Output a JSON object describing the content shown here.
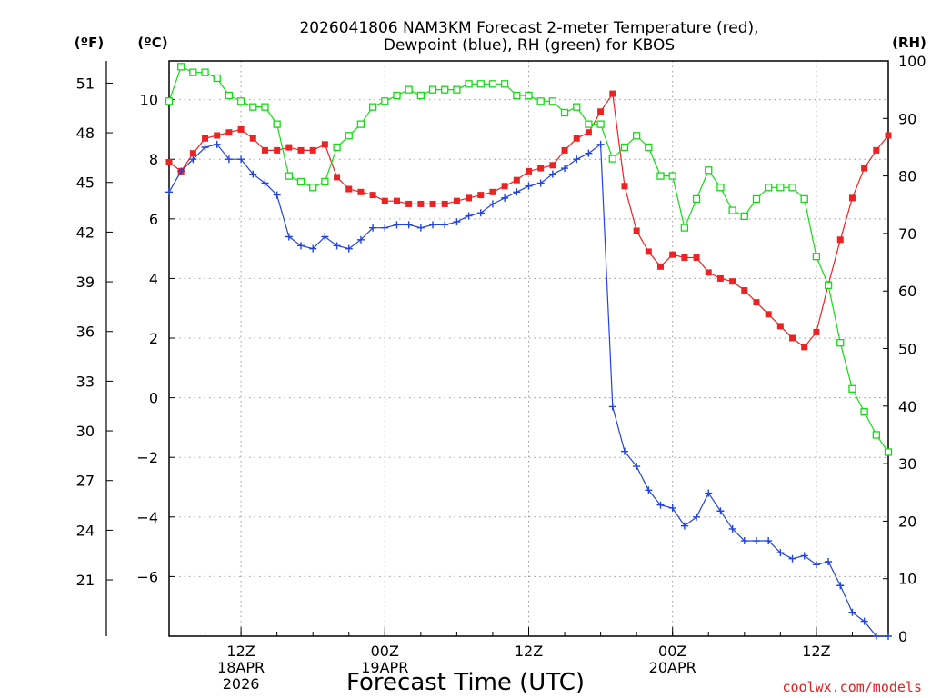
{
  "chart_data": {
    "type": "line",
    "title_line1": "2026041806 NAM3KM Forecast 2-meter Temperature (red),",
    "title_line2": "Dewpoint (blue), RH (green) for KBOS",
    "xlabel": "Forecast Time (UTC)",
    "credit": "coolwx.com/models",
    "left_outer_unit": "(ºF)",
    "left_inner_unit": "(ºC)",
    "right_unit": "(RH)",
    "x_hours": [
      0,
      1,
      2,
      3,
      4,
      5,
      6,
      7,
      8,
      9,
      10,
      11,
      12,
      13,
      14,
      15,
      16,
      17,
      18,
      19,
      20,
      21,
      22,
      23,
      24,
      25,
      26,
      27,
      28,
      29,
      30,
      31,
      32,
      33,
      34,
      35,
      36,
      37,
      38,
      39,
      40,
      41,
      42,
      43,
      44,
      45,
      46,
      47,
      48,
      49,
      50,
      51,
      52,
      53,
      54,
      55,
      56,
      57,
      58,
      59,
      60
    ],
    "x_range_hours": [
      0,
      60
    ],
    "celsius_range": [
      -8,
      11.3
    ],
    "rh_range": [
      0,
      100
    ],
    "fahrenheit_ticks": [
      {
        "value": 21,
        "label": "21"
      },
      {
        "value": 24,
        "label": "24"
      },
      {
        "value": 27,
        "label": "27"
      },
      {
        "value": 30,
        "label": "30"
      },
      {
        "value": 33,
        "label": "33"
      },
      {
        "value": 36,
        "label": "36"
      },
      {
        "value": 39,
        "label": "39"
      },
      {
        "value": 42,
        "label": "42"
      },
      {
        "value": 45,
        "label": "45"
      },
      {
        "value": 48,
        "label": "48"
      },
      {
        "value": 51,
        "label": "51"
      }
    ],
    "celsius_ticks": [
      {
        "value": -6,
        "label": "−6"
      },
      {
        "value": -4,
        "label": "−4"
      },
      {
        "value": -2,
        "label": "−2"
      },
      {
        "value": 0,
        "label": "0"
      },
      {
        "value": 2,
        "label": "2"
      },
      {
        "value": 4,
        "label": "4"
      },
      {
        "value": 6,
        "label": "6"
      },
      {
        "value": 8,
        "label": "8"
      },
      {
        "value": 10,
        "label": "10"
      }
    ],
    "rh_ticks": [
      {
        "value": 0,
        "label": "0"
      },
      {
        "value": 10,
        "label": "10"
      },
      {
        "value": 20,
        "label": "20"
      },
      {
        "value": 30,
        "label": "30"
      },
      {
        "value": 40,
        "label": "40"
      },
      {
        "value": 50,
        "label": "50"
      },
      {
        "value": 60,
        "label": "60"
      },
      {
        "value": 70,
        "label": "70"
      },
      {
        "value": 80,
        "label": "80"
      },
      {
        "value": 90,
        "label": "90"
      },
      {
        "value": 100,
        "label": "100"
      }
    ],
    "x_ticks": [
      {
        "hour": 6,
        "lines": [
          "12Z",
          "18APR",
          "2026"
        ]
      },
      {
        "hour": 18,
        "lines": [
          "00Z",
          "19APR"
        ]
      },
      {
        "hour": 30,
        "lines": [
          "12Z"
        ]
      },
      {
        "hour": 42,
        "lines": [
          "00Z",
          "20APR"
        ]
      },
      {
        "hour": 54,
        "lines": [
          "12Z"
        ]
      }
    ],
    "series": [
      {
        "name": "2-meter Temperature",
        "unit": "C",
        "color": "#ee2222",
        "marker": "filled-square",
        "values": [
          7.9,
          7.6,
          8.2,
          8.7,
          8.8,
          8.9,
          9.0,
          8.7,
          8.3,
          8.3,
          8.4,
          8.3,
          8.3,
          8.5,
          7.4,
          7.0,
          6.9,
          6.8,
          6.6,
          6.6,
          6.5,
          6.5,
          6.5,
          6.5,
          6.6,
          6.7,
          6.8,
          6.9,
          7.1,
          7.3,
          7.6,
          7.7,
          7.8,
          8.3,
          8.7,
          8.9,
          9.6,
          10.2,
          7.1,
          5.6,
          4.9,
          4.4,
          4.8,
          4.7,
          4.7,
          4.2,
          4.0,
          3.9,
          3.6,
          3.2,
          2.8,
          2.4,
          2.0,
          1.7,
          2.2,
          3.8,
          5.3,
          6.7,
          7.7,
          8.3,
          8.8
        ]
      },
      {
        "name": "Dewpoint",
        "unit": "C",
        "color": "#2244dd",
        "marker": "plus",
        "values": [
          6.9,
          7.6,
          8.0,
          8.4,
          8.5,
          8.0,
          8.0,
          7.5,
          7.2,
          6.8,
          5.4,
          5.1,
          5.0,
          5.4,
          5.1,
          5.0,
          5.3,
          5.7,
          5.7,
          5.8,
          5.8,
          5.7,
          5.8,
          5.8,
          5.9,
          6.1,
          6.2,
          6.5,
          6.7,
          6.9,
          7.1,
          7.2,
          7.5,
          7.7,
          8.0,
          8.2,
          8.5,
          -0.3,
          -1.8,
          -2.3,
          -3.1,
          -3.6,
          -3.7,
          -4.3,
          -4.0,
          -3.2,
          -3.8,
          -4.4,
          -4.8,
          -4.8,
          -4.8,
          -5.2,
          -5.4,
          -5.3,
          -5.6,
          -5.5,
          -6.3,
          -7.2,
          -7.5,
          -8.2,
          -8.8
        ]
      },
      {
        "name": "Relative Humidity",
        "unit": "%",
        "color": "#11dd11",
        "marker": "open-square",
        "values": [
          93,
          99,
          98,
          98,
          97,
          94,
          93,
          92,
          92,
          89,
          80,
          79,
          78,
          79,
          85,
          87,
          89,
          92,
          93,
          94,
          95,
          94,
          95,
          95,
          95,
          96,
          96,
          96,
          96,
          94,
          94,
          93,
          93,
          91,
          92,
          89,
          89,
          83,
          85,
          87,
          85,
          80,
          80,
          71,
          76,
          81,
          78,
          74,
          73,
          76,
          78,
          78,
          78,
          76,
          66,
          61,
          51,
          43,
          39,
          35,
          32
        ]
      }
    ]
  }
}
